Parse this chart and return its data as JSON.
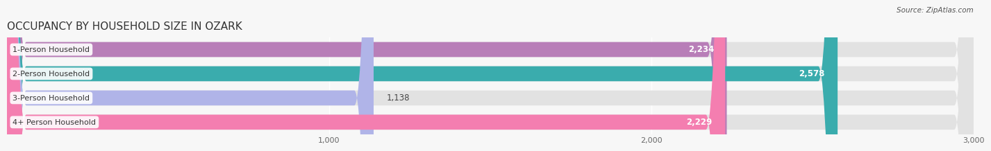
{
  "title": "OCCUPANCY BY HOUSEHOLD SIZE IN OZARK",
  "source": "Source: ZipAtlas.com",
  "categories": [
    "1-Person Household",
    "2-Person Household",
    "3-Person Household",
    "4+ Person Household"
  ],
  "values": [
    2234,
    2578,
    1138,
    2229
  ],
  "bar_colors": [
    "#b87eb8",
    "#3aacad",
    "#b0b4e8",
    "#f47eb0"
  ],
  "xlim_max": 3000,
  "xticks": [
    1000,
    2000,
    3000
  ],
  "xtick_labels": [
    "1,000",
    "2,000",
    "3,000"
  ],
  "background_color": "#f7f7f7",
  "bar_bg_color": "#e2e2e2",
  "title_fontsize": 11,
  "bar_height": 0.62,
  "value_fontsize": 8.5,
  "category_fontsize": 8,
  "source_fontsize": 7.5
}
